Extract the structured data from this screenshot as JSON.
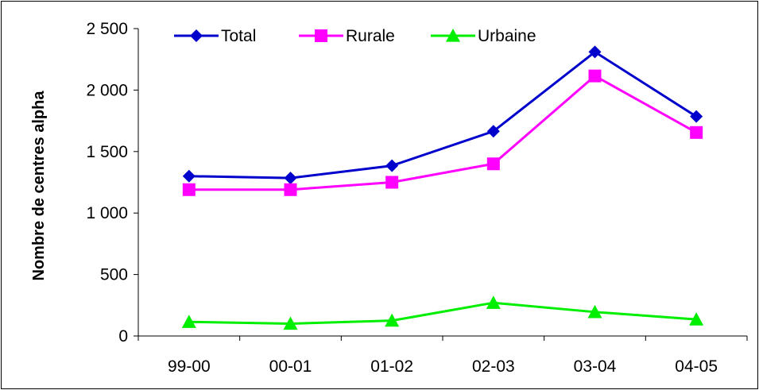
{
  "chart_data": {
    "type": "line",
    "title": "",
    "xlabel": "",
    "ylabel": "Nombre de centres alpha",
    "categories": [
      "99-00",
      "00-01",
      "01-02",
      "02-03",
      "03-04",
      "04-05"
    ],
    "ylim": [
      0,
      2500
    ],
    "yticks": [
      0,
      500,
      1000,
      1500,
      2000,
      2500
    ],
    "ytick_labels": [
      "0",
      "500",
      "1 000",
      "1 500",
      "2 000",
      "2 500"
    ],
    "grid": false,
    "legend_position": "top-left",
    "series": [
      {
        "name": "Total",
        "values": [
          1300,
          1285,
          1385,
          1665,
          2310,
          1785
        ],
        "color": "#0000cc",
        "marker": "diamond"
      },
      {
        "name": "Rurale",
        "values": [
          1190,
          1190,
          1250,
          1400,
          2115,
          1655
        ],
        "color": "#ff00ff",
        "marker": "square"
      },
      {
        "name": "Urbaine",
        "values": [
          115,
          100,
          125,
          270,
          195,
          135
        ],
        "color": "#00ee00",
        "marker": "triangle"
      }
    ]
  }
}
